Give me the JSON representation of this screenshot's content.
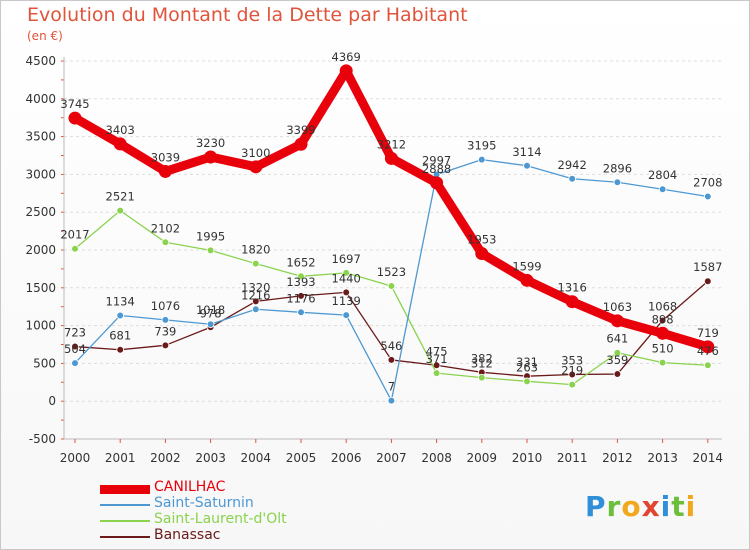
{
  "title": "Evolution du Montant de la Dette par Habitant",
  "unit_label": "(en €)",
  "brand": {
    "letters": [
      {
        "ch": "P",
        "color": "#2f8fd8"
      },
      {
        "ch": "r",
        "color": "#6cbf3a"
      },
      {
        "ch": "o",
        "color": "#f2a81d"
      },
      {
        "ch": "x",
        "color": "#e2452f"
      },
      {
        "ch": "i",
        "color": "#2f8fd8"
      },
      {
        "ch": "t",
        "color": "#6cbf3a"
      },
      {
        "ch": "i",
        "color": "#f2a81d"
      }
    ]
  },
  "chart_data": {
    "type": "line",
    "title": "Evolution du Montant de la Dette par Habitant",
    "subtitle": "(en €)",
    "xlabel": "",
    "ylabel": "",
    "ylim": [
      -500,
      4500
    ],
    "y_ticks": [
      "-500",
      "0",
      "500",
      "1000",
      "1500",
      "2000",
      "2500",
      "3000",
      "3500",
      "4000",
      "4500"
    ],
    "grid": "horizontal dashed",
    "legend_position": "bottom-left",
    "categories": [
      "2000",
      "2001",
      "2002",
      "2003",
      "2004",
      "2005",
      "2006",
      "2007",
      "2008",
      "2009",
      "2010",
      "2011",
      "2012",
      "2013",
      "2014"
    ],
    "series": [
      {
        "name": "CANILHAC",
        "color": "#e8000b",
        "width": 9,
        "values": [
          3745,
          3403,
          3039,
          3230,
          3100,
          3399,
          4369,
          3212,
          2888,
          1953,
          1599,
          1316,
          1063,
          898,
          719
        ]
      },
      {
        "name": "Saint-Saturnin",
        "color": "#4e98d2",
        "width": 1.3,
        "values": [
          504,
          1134,
          1076,
          1018,
          1216,
          1176,
          1139,
          7,
          2997,
          3195,
          3114,
          2942,
          2896,
          2804,
          2708
        ]
      },
      {
        "name": "Saint-Laurent-d'Olt",
        "color": "#8ad34e",
        "width": 1.3,
        "values": [
          2017,
          2521,
          2102,
          1995,
          1820,
          1652,
          1697,
          1523,
          371,
          312,
          263,
          219,
          641,
          510,
          476
        ]
      },
      {
        "name": "Banassac",
        "color": "#6b1a1a",
        "width": 1.3,
        "values": [
          723,
          681,
          739,
          978,
          1320,
          1393,
          1440,
          546,
          475,
          382,
          331,
          353,
          359,
          1068,
          1587
        ]
      }
    ]
  }
}
